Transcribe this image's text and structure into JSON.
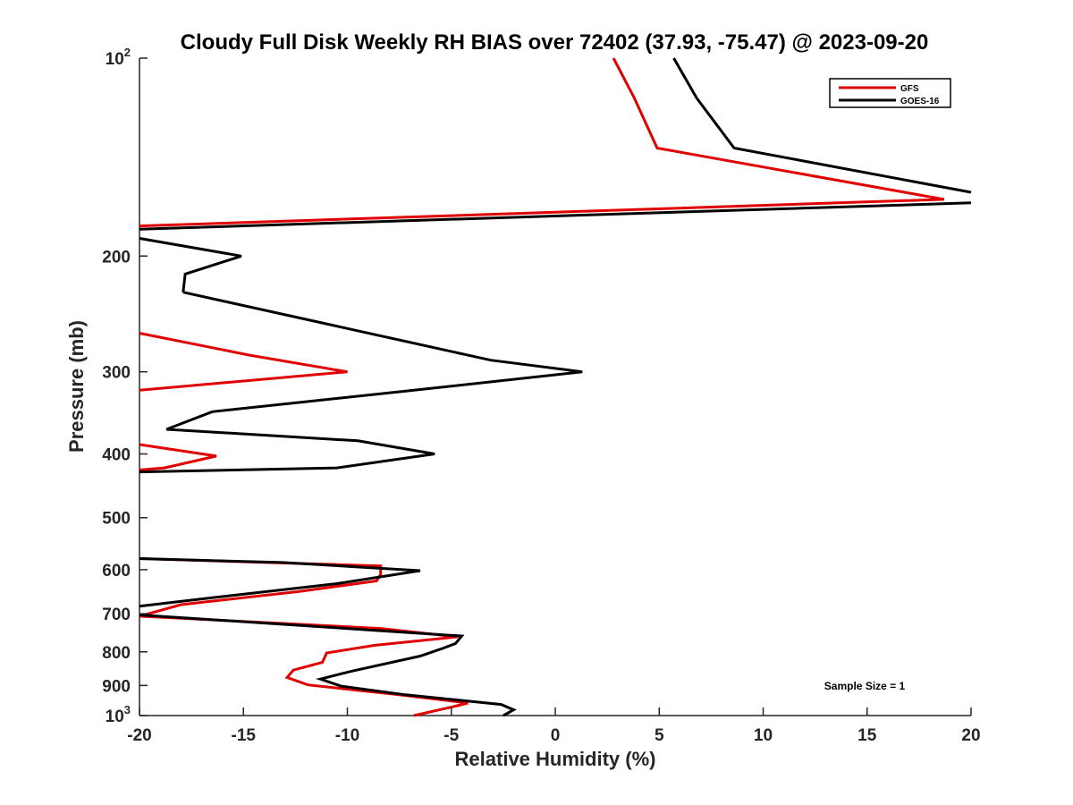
{
  "chart_data": {
    "type": "line",
    "title": "Cloudy Full Disk Weekly RH BIAS over 72402 (37.93, -75.47) @ 2023-09-20",
    "xlabel": "Relative Humidity (%)",
    "ylabel": "Pressure (mb)",
    "xlim": [
      -20,
      20
    ],
    "ylim": [
      100,
      1000
    ],
    "y_scale": "log",
    "y_reversed": true,
    "x_ticks": [
      -20,
      -15,
      -10,
      -5,
      0,
      5,
      10,
      15,
      20
    ],
    "y_ticks": [
      {
        "value": 100,
        "label": "10",
        "sup": "2"
      },
      {
        "value": 200,
        "label": "200",
        "sup": ""
      },
      {
        "value": 300,
        "label": "300",
        "sup": ""
      },
      {
        "value": 400,
        "label": "400",
        "sup": ""
      },
      {
        "value": 500,
        "label": "500",
        "sup": ""
      },
      {
        "value": 600,
        "label": "600",
        "sup": ""
      },
      {
        "value": 700,
        "label": "700",
        "sup": ""
      },
      {
        "value": 800,
        "label": "800",
        "sup": ""
      },
      {
        "value": 900,
        "label": "900",
        "sup": ""
      },
      {
        "value": 1000,
        "label": "10",
        "sup": "3"
      }
    ],
    "legend_position": "top-right",
    "annotation": "Sample Size = 1",
    "series": [
      {
        "name": "GFS",
        "color": "#e00000",
        "segments": [
          [
            [
              2.8,
              100
            ],
            [
              3.8,
              115
            ],
            [
              4.9,
              137
            ],
            [
              18.7,
              164
            ],
            [
              -20,
              180
            ]
          ],
          [
            [
              -20,
              262
            ],
            [
              -14.7,
              283
            ],
            [
              -10,
              300
            ],
            [
              -20,
              320
            ]
          ],
          [
            [
              -20,
              387
            ],
            [
              -16.3,
              403
            ],
            [
              -18.8,
              420
            ],
            [
              -20,
              423
            ]
          ],
          [
            [
              -20,
              577
            ],
            [
              -8.4,
              592
            ],
            [
              -8.4,
              610
            ],
            [
              -8.6,
              624
            ],
            [
              -12.4,
              648
            ],
            [
              -18,
              678
            ],
            [
              -20,
              706
            ]
          ],
          [
            [
              -20,
              706
            ],
            [
              -8.4,
              737
            ],
            [
              -4.7,
              759
            ],
            [
              -8.7,
              782
            ],
            [
              -11,
              803
            ],
            [
              -11.2,
              830
            ],
            [
              -12.6,
              853
            ],
            [
              -12.9,
              875
            ],
            [
              -11.9,
              898
            ],
            [
              -7.5,
              930
            ],
            [
              -4.2,
              957
            ],
            [
              -5,
              971
            ],
            [
              -6.8,
              1000
            ]
          ]
        ]
      },
      {
        "name": "GOES-16",
        "color": "#000000",
        "segments": [
          [
            [
              5.7,
              100
            ],
            [
              6.8,
              115
            ],
            [
              8.6,
              137
            ],
            [
              20,
              160
            ]
          ],
          [
            [
              20,
              166
            ],
            [
              -20,
              182
            ]
          ],
          [
            [
              -20,
              188
            ],
            [
              -15.1,
              200
            ],
            [
              -17.8,
              213
            ],
            [
              -17.9,
              227
            ]
          ],
          [
            [
              -17.9,
              227
            ],
            [
              -3.1,
              288
            ],
            [
              1.3,
              300
            ],
            [
              -6.8,
              320
            ],
            [
              -16.5,
              345
            ],
            [
              -18.7,
              367
            ],
            [
              -9.5,
              382
            ],
            [
              -5.8,
              400
            ],
            [
              -10.5,
              420
            ],
            [
              -20,
              426
            ]
          ],
          [
            [
              -20,
              577
            ],
            [
              -13.1,
              585
            ],
            [
              -6.5,
              602
            ],
            [
              -10.5,
              630
            ],
            [
              -16.5,
              662
            ],
            [
              -20,
              682
            ]
          ],
          [
            [
              -20,
              703
            ],
            [
              -4.5,
              757
            ],
            [
              -4.8,
              777
            ],
            [
              -5.5,
              792
            ],
            [
              -6.5,
              812
            ],
            [
              -9.8,
              856
            ],
            [
              -11.3,
              880
            ],
            [
              -10.3,
              902
            ],
            [
              -7.2,
              930
            ],
            [
              -2.6,
              962
            ],
            [
              -2,
              980
            ],
            [
              -2.5,
              1000
            ]
          ]
        ]
      }
    ]
  }
}
